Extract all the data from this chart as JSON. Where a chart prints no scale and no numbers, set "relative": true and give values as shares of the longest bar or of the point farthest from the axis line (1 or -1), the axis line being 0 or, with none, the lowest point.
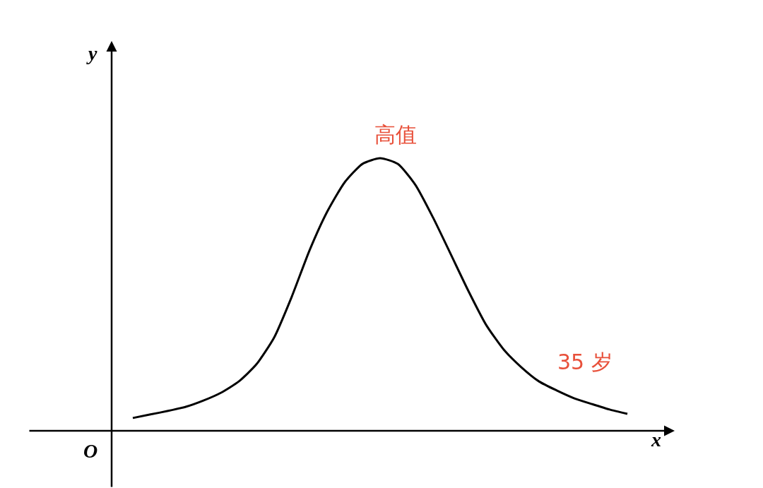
{
  "chart_data": {
    "type": "line",
    "relative": true,
    "xlabel": "x",
    "ylabel": "y",
    "marker": "none",
    "line_style": "solid",
    "categories": [
      null,
      null,
      null,
      null,
      null,
      null,
      null,
      null,
      null,
      null,
      null,
      null,
      null,
      null,
      null,
      null,
      null,
      null,
      null,
      null,
      null,
      null,
      null,
      null,
      null,
      null,
      null,
      null,
      null
    ],
    "series": [
      {
        "color": "#000000",
        "values": [
          0.047,
          0.06,
          0.073,
          0.088,
          0.111,
          0.14,
          0.181,
          0.244,
          0.342,
          0.492,
          0.661,
          0.803,
          0.912,
          0.979,
          1,
          0.979,
          0.902,
          0.782,
          0.648,
          0.513,
          0.389,
          0.298,
          0.233,
          0.181,
          0.148,
          0.119,
          0.098,
          0.078,
          0.062
        ]
      }
    ],
    "annotations": [
      "高值",
      "35 岁",
      "O"
    ]
  }
}
